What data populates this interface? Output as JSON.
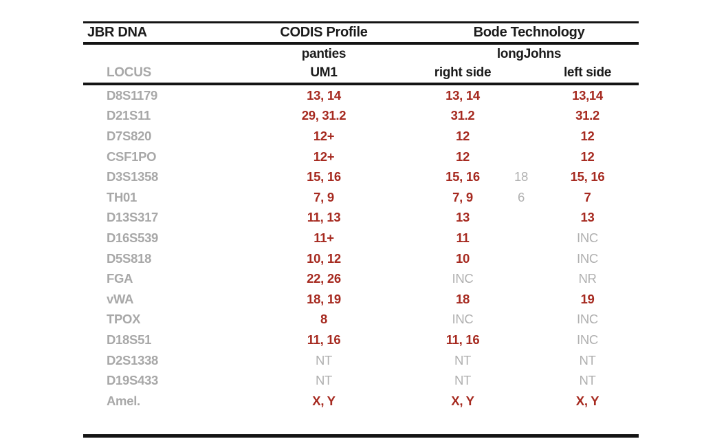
{
  "page": {
    "background": "#ffffff"
  },
  "colors": {
    "value_red": "#a62a20",
    "muted_gray": "#b0b0b0",
    "locus_gray": "#a8a8a8",
    "text_black": "#1b1b1b",
    "rule_black": "#141414"
  },
  "table": {
    "title_row": {
      "left": "JBR DNA",
      "codis": "CODIS Profile",
      "bode": "Bode Technology"
    },
    "source_row": {
      "codis": "panties",
      "bode": "longJohns"
    },
    "column_row": {
      "locus": "LOCUS",
      "codis": "UM1",
      "bode_right": "right side",
      "bode_left": "left side"
    },
    "rows": [
      {
        "locus": "D8S1179",
        "um1": "13, 14",
        "um1_style": "red",
        "right": "13, 14",
        "right_style": "red",
        "extra": "",
        "left": "13,14",
        "left_style": "red"
      },
      {
        "locus": "D21S11",
        "um1": "29, 31.2",
        "um1_style": "red",
        "right": "31.2",
        "right_style": "red",
        "extra": "",
        "left": "31.2",
        "left_style": "red"
      },
      {
        "locus": "D7S820",
        "um1": "12+",
        "um1_style": "red",
        "right": "12",
        "right_style": "red",
        "extra": "",
        "left": "12",
        "left_style": "red"
      },
      {
        "locus": "CSF1PO",
        "um1": "12+",
        "um1_style": "red",
        "right": "12",
        "right_style": "red",
        "extra": "",
        "left": "12",
        "left_style": "red"
      },
      {
        "locus": "D3S1358",
        "um1": "15, 16",
        "um1_style": "red",
        "right": "15, 16",
        "right_style": "red",
        "extra": "18",
        "left": "15, 16",
        "left_style": "red"
      },
      {
        "locus": "TH01",
        "um1": "7, 9",
        "um1_style": "red",
        "right": "7, 9",
        "right_style": "red",
        "extra": "6",
        "left": "7",
        "left_style": "red"
      },
      {
        "locus": "D13S317",
        "um1": "11, 13",
        "um1_style": "red",
        "right": "13",
        "right_style": "red",
        "extra": "",
        "left": "13",
        "left_style": "red"
      },
      {
        "locus": "D16S539",
        "um1": "11+",
        "um1_style": "red",
        "right": "11",
        "right_style": "red",
        "extra": "",
        "left": "INC",
        "left_style": "gray"
      },
      {
        "locus": "D5S818",
        "um1": "10, 12",
        "um1_style": "red",
        "right": "10",
        "right_style": "red",
        "extra": "",
        "left": "INC",
        "left_style": "gray"
      },
      {
        "locus": "FGA",
        "um1": "22, 26",
        "um1_style": "red",
        "right": "INC",
        "right_style": "gray",
        "extra": "",
        "left": "NR",
        "left_style": "gray"
      },
      {
        "locus": "vWA",
        "um1": "18, 19",
        "um1_style": "red",
        "right": "18",
        "right_style": "red",
        "extra": "",
        "left": "19",
        "left_style": "red"
      },
      {
        "locus": "TPOX",
        "um1": "8",
        "um1_style": "red",
        "right": "INC",
        "right_style": "gray",
        "extra": "",
        "left": "INC",
        "left_style": "gray"
      },
      {
        "locus": "D18S51",
        "um1": "11, 16",
        "um1_style": "red",
        "right": "11, 16",
        "right_style": "red",
        "extra": "",
        "left": "INC",
        "left_style": "gray"
      },
      {
        "locus": "D2S1338",
        "um1": "NT",
        "um1_style": "gray",
        "right": "NT",
        "right_style": "gray",
        "extra": "",
        "left": "NT",
        "left_style": "gray"
      },
      {
        "locus": "D19S433",
        "um1": "NT",
        "um1_style": "gray",
        "right": "NT",
        "right_style": "gray",
        "extra": "",
        "left": "NT",
        "left_style": "gray"
      },
      {
        "locus": "Amel.",
        "um1": "X, Y",
        "um1_style": "red",
        "right": "X, Y",
        "right_style": "red",
        "extra": "",
        "left": "X, Y",
        "left_style": "red"
      }
    ]
  }
}
